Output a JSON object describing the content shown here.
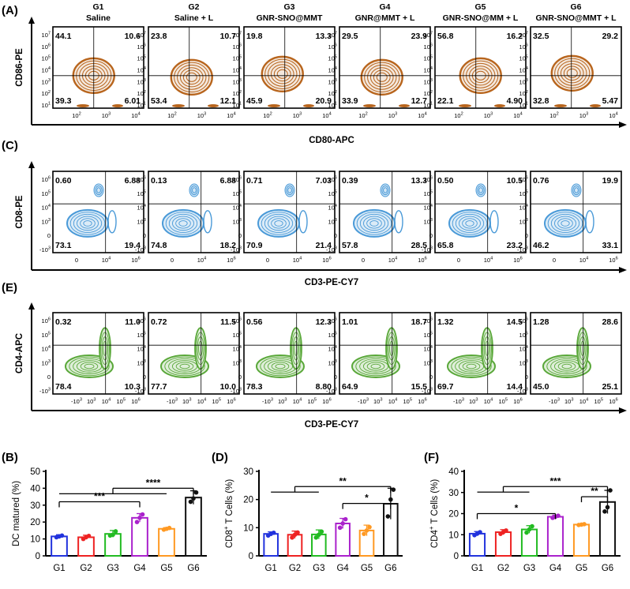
{
  "panel_letters": [
    "(A)",
    "(C)",
    "(E)",
    "(B)",
    "(D)",
    "(F)"
  ],
  "flow": {
    "groups": [
      {
        "id": "G1",
        "name": "Saline"
      },
      {
        "id": "G2",
        "name": "Saline + L"
      },
      {
        "id": "G3",
        "name": "GNR-SNO@MMT"
      },
      {
        "id": "G4",
        "name": "GNR@MMT + L"
      },
      {
        "id": "G5",
        "name": "GNR-SNO@MM + L"
      },
      {
        "id": "G6",
        "name": "GNR-SNO@MMT + L"
      }
    ],
    "rows": [
      {
        "panel": "(A)",
        "ylabel": "CD86-PE",
        "xlabel": "CD80-APC",
        "color": "#b8651d",
        "yticks": [
          "10^7",
          "10^6",
          "10^5",
          "10^4",
          "10^3",
          "10^2",
          "10^1"
        ],
        "xticks": [
          "10^2",
          "10^3",
          "10^4"
        ],
        "quadrants": [
          [
            "44.1",
            "10.6",
            "39.3",
            "6.01"
          ],
          [
            "23.8",
            "10.7",
            "53.4",
            "12.1"
          ],
          [
            "19.8",
            "13.3",
            "45.9",
            "20.9"
          ],
          [
            "29.5",
            "23.9",
            "33.9",
            "12.7"
          ],
          [
            "56.8",
            "16.2",
            "22.1",
            "4.90"
          ],
          [
            "32.5",
            "29.2",
            "32.8",
            "5.47"
          ]
        ]
      },
      {
        "panel": "(C)",
        "ylabel": "CD8-PE",
        "xlabel": "CD3-PE-CY7",
        "color": "#4a9ad8",
        "yticks": [
          "10^6",
          "10^5",
          "10^4",
          "10^3",
          "0",
          "-10^3"
        ],
        "xticks": [
          "0",
          "10^4",
          "10^6"
        ],
        "quadrants": [
          [
            "0.60",
            "6.88",
            "73.1",
            "19.4"
          ],
          [
            "0.13",
            "6.88",
            "74.8",
            "18.2"
          ],
          [
            "0.71",
            "7.03",
            "70.9",
            "21.4"
          ],
          [
            "0.39",
            "13.3",
            "57.8",
            "28.5"
          ],
          [
            "0.50",
            "10.5",
            "65.8",
            "23.2"
          ],
          [
            "0.76",
            "19.9",
            "46.2",
            "33.1"
          ]
        ]
      },
      {
        "panel": "(E)",
        "ylabel": "CD4-APC",
        "xlabel": "CD3-PE-CY7",
        "color": "#5aa83a",
        "yticks": [
          "10^6",
          "10^5",
          "10^4",
          "10^3",
          "0",
          "-10^3"
        ],
        "xticks": [
          "-10^3",
          "10^3",
          "10^4",
          "10^5",
          "10^6"
        ],
        "quadrants": [
          [
            "0.32",
            "11.0",
            "78.4",
            "10.3"
          ],
          [
            "0.72",
            "11.5",
            "77.7",
            "10.0"
          ],
          [
            "0.56",
            "12.3",
            "78.3",
            "8.80"
          ],
          [
            "1.01",
            "18.7",
            "64.9",
            "15.5"
          ],
          [
            "1.32",
            "14.5",
            "69.7",
            "14.4"
          ],
          [
            "1.28",
            "28.6",
            "45.0",
            "25.1"
          ]
        ]
      }
    ]
  },
  "chart_data": [
    {
      "type": "bar",
      "panel": "(B)",
      "ylabel": "DC matured (%)",
      "categories": [
        "G1",
        "G2",
        "G3",
        "G4",
        "G5",
        "G6"
      ],
      "values": [
        11.5,
        11,
        13,
        22.5,
        16,
        34.5
      ],
      "errors": [
        1,
        1.2,
        2,
        2.5,
        0.7,
        4
      ],
      "points": [
        [
          11,
          11.5,
          12
        ],
        [
          10,
          11,
          11.8
        ],
        [
          12,
          12.5,
          14.5
        ],
        [
          20,
          22.5,
          24.5
        ],
        [
          15.5,
          16,
          16.5
        ],
        [
          32,
          34,
          37.5
        ]
      ],
      "ylim": [
        0,
        50
      ],
      "yticks": [
        0,
        10,
        20,
        30,
        40,
        50
      ],
      "colors": [
        "#2233dd",
        "#ee2222",
        "#22bb22",
        "#aa22cc",
        "#ff9922",
        "#111111"
      ],
      "significance": [
        {
          "label": "****",
          "from": [
            0,
            4
          ],
          "to": 5,
          "level": 0.8
        },
        {
          "label": "***",
          "from": [
            0
          ],
          "to": 3,
          "level": 0.64
        }
      ]
    },
    {
      "type": "bar",
      "panel": "(D)",
      "ylabel": "CD8+ T Cells (%)",
      "ylabel_main": "CD8",
      "ylabel_sup": "+",
      "ylabel_rest": " T Cells (%)",
      "categories": [
        "G1",
        "G2",
        "G3",
        "G4",
        "G5",
        "G6"
      ],
      "values": [
        7.8,
        7.5,
        7.6,
        11.5,
        9,
        18.5
      ],
      "errors": [
        0.7,
        1.3,
        1.6,
        1.8,
        1.9,
        5.5
      ],
      "points": [
        [
          7.2,
          7.8,
          8.2
        ],
        [
          6.5,
          7.5,
          8.3
        ],
        [
          6.5,
          7.5,
          8.6
        ],
        [
          10,
          11.5,
          13
        ],
        [
          7.8,
          9,
          10.2
        ],
        [
          14,
          20,
          23.5
        ]
      ],
      "ylim": [
        0,
        30
      ],
      "yticks": [
        0,
        10,
        20,
        30
      ],
      "colors": [
        "#2233dd",
        "#ee2222",
        "#22bb22",
        "#aa22cc",
        "#ff9922",
        "#111111"
      ],
      "significance": [
        {
          "label": "**",
          "from": [
            0,
            2
          ],
          "to": 5,
          "level": 0.82
        },
        {
          "label": "*",
          "from": [
            3
          ],
          "to": 5,
          "level": 0.62
        }
      ]
    },
    {
      "type": "bar",
      "panel": "(F)",
      "ylabel": "CD4+ T Cells (%)",
      "ylabel_main": "CD4",
      "ylabel_sup": "+",
      "ylabel_rest": " T Cells (%)",
      "categories": [
        "G1",
        "G2",
        "G3",
        "G4",
        "G5",
        "G6"
      ],
      "values": [
        10.5,
        11.2,
        12.5,
        18.5,
        14.8,
        25.5
      ],
      "errors": [
        1,
        1.2,
        1.8,
        0.8,
        0.3,
        5.5
      ],
      "points": [
        [
          9.8,
          10.5,
          11.2
        ],
        [
          10.4,
          11.2,
          12
        ],
        [
          11,
          12.5,
          14
        ],
        [
          18,
          18.5,
          19
        ],
        [
          14.6,
          14.8,
          15
        ],
        [
          21,
          23,
          31
        ]
      ],
      "ylim": [
        0,
        40
      ],
      "yticks": [
        0,
        10,
        20,
        30,
        40
      ],
      "colors": [
        "#2233dd",
        "#ee2222",
        "#22bb22",
        "#aa22cc",
        "#ff9922",
        "#111111"
      ],
      "significance": [
        {
          "label": "***",
          "from": [
            0,
            2
          ],
          "to": 5,
          "level": 0.82
        },
        {
          "label": "**",
          "from": [
            4
          ],
          "to": 5,
          "level": 0.7
        },
        {
          "label": "*",
          "from": [
            0
          ],
          "to": 3,
          "level": 0.5
        }
      ]
    }
  ]
}
